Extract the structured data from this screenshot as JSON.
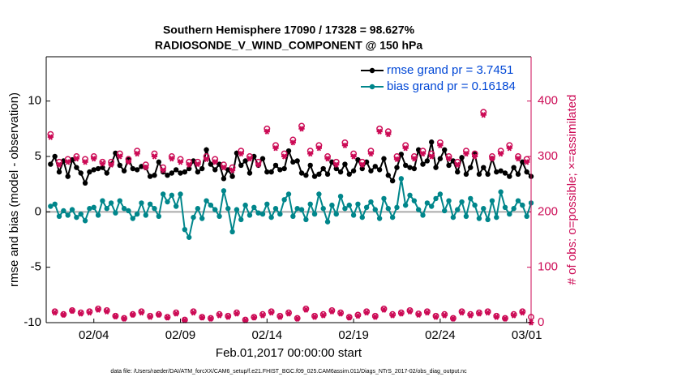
{
  "chart_data": {
    "type": "line",
    "title": "Southern Hemisphere 17090 / 17328 = 98.627%",
    "subtitle": "RADIOSONDE_V_WIND_COMPONENT @ 150 hPa",
    "xlabel": "Feb.01,2017 00:00:00 start",
    "ylabel": "rmse and bias (model - observation)",
    "y2label": "# of obs: o=possible; ×=assimilated",
    "footnote": "data file: /Users/raeder/DAI/ATM_forcXX/CAM6_setup/f.e21.FHIST_BGC.f09_025.CAM6assim.011/Diags_NTrS_2017-02/obs_diag_output.nc",
    "legend": "top-right",
    "reference_line": 0,
    "xlim": [
      0.25,
      28.25
    ],
    "xticks": [
      {
        "value": 3,
        "label": "02/04"
      },
      {
        "value": 8,
        "label": "02/09"
      },
      {
        "value": 13,
        "label": "02/14"
      },
      {
        "value": 18,
        "label": "02/19"
      },
      {
        "value": 23,
        "label": "02/24"
      },
      {
        "value": 28,
        "label": "03/01"
      }
    ],
    "ylim": [
      -10,
      14
    ],
    "yticks": [
      -10,
      -5,
      0,
      5,
      10
    ],
    "y2lim": [
      0,
      480
    ],
    "y2ticks": [
      0,
      100,
      200,
      300,
      400
    ],
    "x": [
      0.5,
      0.75,
      1,
      1.25,
      1.5,
      1.75,
      2,
      2.25,
      2.5,
      2.75,
      3,
      3.25,
      3.5,
      3.75,
      4,
      4.25,
      4.5,
      4.75,
      5,
      5.25,
      5.5,
      5.75,
      6,
      6.25,
      6.5,
      6.75,
      7,
      7.25,
      7.5,
      7.75,
      8,
      8.25,
      8.5,
      8.75,
      9,
      9.25,
      9.5,
      9.75,
      10,
      10.25,
      10.5,
      10.75,
      11,
      11.25,
      11.5,
      11.75,
      12,
      12.25,
      12.5,
      12.75,
      13,
      13.25,
      13.5,
      13.75,
      14,
      14.25,
      14.5,
      14.75,
      15,
      15.25,
      15.5,
      15.75,
      16,
      16.25,
      16.5,
      16.75,
      17,
      17.25,
      17.5,
      17.75,
      18,
      18.25,
      18.5,
      18.75,
      19,
      19.25,
      19.5,
      19.75,
      20,
      20.25,
      20.5,
      20.75,
      21,
      21.25,
      21.5,
      21.75,
      22,
      22.25,
      22.5,
      22.75,
      23,
      23.25,
      23.5,
      23.75,
      24,
      24.25,
      24.5,
      24.75,
      25,
      25.25,
      25.5,
      25.75,
      26,
      26.25,
      26.5,
      26.75,
      27,
      27.25,
      27.5,
      27.75,
      28,
      28.25
    ],
    "series": [
      {
        "name": "rmse grand pr = 3.7451",
        "color": "#000000",
        "marker": "dot",
        "line": true,
        "axis": "y",
        "values": [
          4.3,
          5.0,
          3.6,
          4.6,
          3.2,
          4.7,
          4.0,
          3.5,
          2.6,
          3.6,
          3.8,
          3.9,
          4.0,
          3.5,
          4.3,
          5.3,
          4.2,
          3.7,
          4.8,
          3.9,
          3.8,
          4.1,
          4.0,
          3.2,
          3.3,
          4.5,
          3.6,
          3.3,
          3.5,
          3.8,
          3.5,
          3.6,
          3.9,
          4.6,
          3.6,
          3.9,
          5.6,
          4.3,
          3.8,
          4.3,
          3.0,
          3.8,
          3.2,
          5.3,
          4.2,
          4.6,
          3.5,
          5.0,
          4.2,
          4.8,
          3.6,
          3.6,
          4.2,
          3.8,
          3.9,
          5.5,
          4.5,
          4.6,
          3.5,
          3.3,
          4.2,
          3.2,
          3.4,
          3.9,
          3.4,
          4.5,
          3.9,
          3.6,
          4.3,
          3.4,
          3.7,
          4.7,
          3.9,
          4.5,
          3.7,
          4.1,
          3.8,
          4.8,
          3.3,
          2.8,
          4.0,
          5.2,
          4.2,
          4.0,
          3.9,
          5.6,
          4.3,
          4.6,
          6.3,
          4.0,
          4.8,
          5.6,
          4.2,
          4.6,
          3.6,
          4.9,
          3.4,
          4.0,
          5.2,
          3.4,
          4.0,
          3.4,
          4.8,
          3.6,
          3.7,
          3.5,
          3.2,
          4.0,
          3.4,
          4.5,
          3.6,
          3.2
        ]
      },
      {
        "name": "bias grand pr = 0.16184",
        "color": "#00868b",
        "marker": "dot",
        "line": true,
        "axis": "y",
        "values": [
          0.5,
          0.7,
          -0.4,
          0.1,
          -0.3,
          0.2,
          -0.5,
          -0.2,
          -0.8,
          0.3,
          0.4,
          -0.3,
          1.0,
          0.3,
          0.8,
          -0.1,
          1.0,
          0.3,
          0.1,
          -0.6,
          -0.2,
          0.8,
          -0.3,
          0.7,
          0.3,
          -0.4,
          1.6,
          0.9,
          1.5,
          0.5,
          1.6,
          -1.6,
          -2.3,
          -0.5,
          0.3,
          -0.6,
          1.0,
          0.6,
          0.2,
          -0.4,
          1.9,
          0.3,
          -1.8,
          0.2,
          -0.7,
          0.6,
          -0.3,
          0.4,
          -0.1,
          -0.2,
          0.7,
          -0.5,
          0.3,
          -0.2,
          1.1,
          1.6,
          -0.4,
          0.3,
          0.2,
          -0.7,
          0.7,
          -0.2,
          1.6,
          0.3,
          -0.9,
          0.6,
          -0.2,
          1.4,
          0.3,
          0.6,
          -0.3,
          0.7,
          -0.5,
          0.4,
          0.9,
          0.2,
          -0.6,
          1.2,
          0.3,
          -0.5,
          0.4,
          3.0,
          0.6,
          1.5,
          1.0,
          0.2,
          -0.3,
          0.8,
          0.5,
          1.2,
          1.6,
          0.1,
          1.0,
          -0.5,
          0.2,
          0.9,
          -0.4,
          1.2,
          0.6,
          -0.6,
          0.3,
          -0.7,
          1.0,
          -0.5,
          1.8,
          0.4,
          -0.2,
          0.3,
          1.0,
          0.6,
          -0.4,
          0.8
        ]
      },
      {
        "color": "#cc0a55",
        "marker": "circle",
        "line": false,
        "axis": "y2",
        "values": [
          340,
          20,
          290,
          15,
          295,
          22,
          300,
          18,
          295,
          20,
          300,
          25,
          290,
          22,
          290,
          12,
          305,
          8,
          295,
          15,
          310,
          20,
          285,
          12,
          305,
          15,
          280,
          10,
          300,
          18,
          295,
          5,
          290,
          20,
          290,
          10,
          300,
          8,
          295,
          15,
          285,
          12,
          280,
          18,
          310,
          5,
          300,
          10,
          290,
          15,
          350,
          20,
          320,
          12,
          305,
          18,
          330,
          8,
          355,
          25,
          310,
          12,
          320,
          15,
          300,
          22,
          290,
          18,
          325,
          10,
          305,
          14,
          290,
          20,
          310,
          12,
          350,
          25,
          345,
          15,
          300,
          18,
          320,
          22,
          300,
          16,
          310,
          20,
          305,
          12,
          325,
          15,
          300,
          8,
          290,
          20,
          310,
          15,
          305,
          18,
          380,
          20,
          300,
          12,
          310,
          8,
          320,
          15,
          300,
          20,
          295,
          10
        ]
      },
      {
        "color": "#cc0a55",
        "marker": "star",
        "line": false,
        "axis": "y2",
        "values": [
          335,
          18,
          285,
          14,
          290,
          21,
          296,
          16,
          290,
          18,
          296,
          23,
          287,
          20,
          285,
          11,
          300,
          7,
          290,
          14,
          305,
          18,
          280,
          10,
          300,
          14,
          275,
          9,
          296,
          16,
          290,
          4,
          285,
          18,
          286,
          9,
          295,
          7,
          290,
          13,
          280,
          10,
          275,
          16,
          305,
          4,
          296,
          9,
          285,
          13,
          345,
          18,
          315,
          10,
          300,
          16,
          325,
          7,
          350,
          23,
          305,
          10,
          315,
          13,
          296,
          20,
          285,
          16,
          320,
          9,
          300,
          12,
          285,
          18,
          305,
          10,
          345,
          23,
          340,
          13,
          295,
          16,
          315,
          20,
          296,
          14,
          305,
          18,
          300,
          10,
          320,
          13,
          296,
          7,
          285,
          18,
          305,
          13,
          300,
          16,
          375,
          18,
          296,
          10,
          305,
          7,
          315,
          13,
          296,
          18,
          290,
          0
        ]
      }
    ]
  }
}
